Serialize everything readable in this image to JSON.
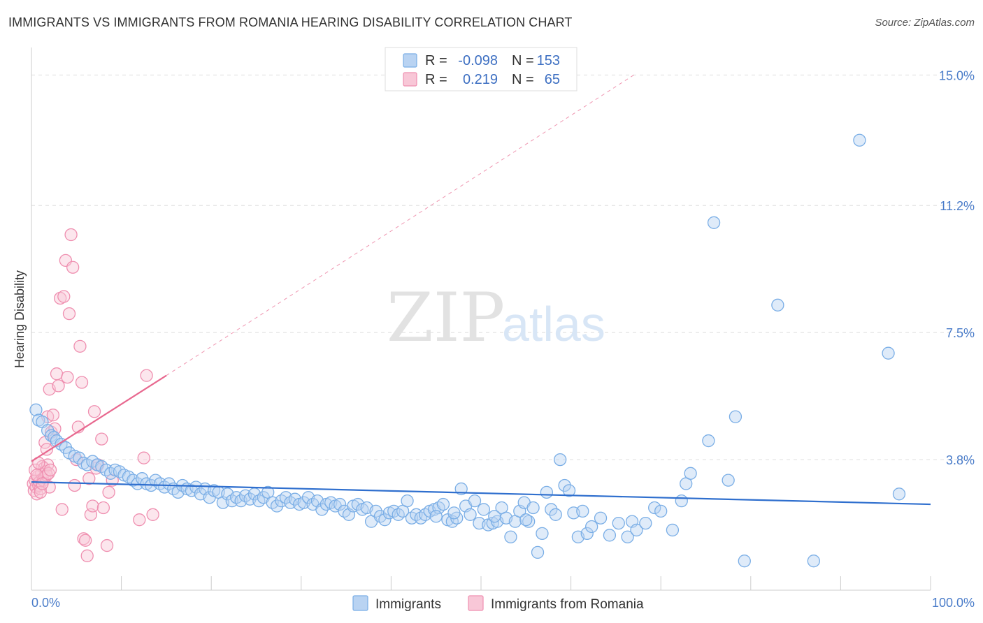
{
  "header": {
    "title": "IMMIGRANTS VS IMMIGRANTS FROM ROMANIA HEARING DISABILITY CORRELATION CHART",
    "source": "Source: ZipAtlas.com"
  },
  "watermark": {
    "zip": "ZIP",
    "atlas": "atlas"
  },
  "colors": {
    "blue": "#7aaee6",
    "blue_fill": "#b9d3f2",
    "blue_line": "#2f6fce",
    "pink": "#ef8fb0",
    "pink_fill": "#f8c7d7",
    "pink_line": "#e8688f",
    "grid": "#dddddd",
    "tick_text": "#4a7cc9"
  },
  "legend": {
    "rows": [
      {
        "r_label": "R =",
        "r_value": "-0.098",
        "n_label": "N =",
        "n_value": "153"
      },
      {
        "r_label": "R =",
        "r_value": "0.219",
        "n_label": "N =",
        "n_value": "65"
      }
    ]
  },
  "bottom_legend": [
    "Immigrants",
    "Immigrants from Romania"
  ],
  "chart_data": {
    "type": "scatter",
    "title": "IMMIGRANTS VS IMMIGRANTS FROM ROMANIA HEARING DISABILITY CORRELATION CHART",
    "xlabel": "",
    "ylabel": "Hearing Disability",
    "xlim": [
      0,
      100
    ],
    "ylim": [
      0,
      15.8
    ],
    "x_tick_labels": [
      "0.0%",
      "100.0%"
    ],
    "y_ticks": [
      3.8,
      7.5,
      11.2,
      15.0
    ],
    "y_tick_labels": [
      "3.8%",
      "7.5%",
      "11.2%",
      "15.0%"
    ],
    "grid": true,
    "legend_position": "top-center",
    "series": [
      {
        "name": "Immigrants",
        "r": -0.098,
        "n": 153,
        "trend": {
          "x": [
            0,
            100
          ],
          "y": [
            3.15,
            2.5
          ]
        },
        "points": [
          [
            0.5,
            5.25
          ],
          [
            0.8,
            4.95
          ],
          [
            1.2,
            4.9
          ],
          [
            1.8,
            4.65
          ],
          [
            2.2,
            4.5
          ],
          [
            2.5,
            4.45
          ],
          [
            2.8,
            4.35
          ],
          [
            3.3,
            4.25
          ],
          [
            3.8,
            4.15
          ],
          [
            4.2,
            4.0
          ],
          [
            4.8,
            3.9
          ],
          [
            5.3,
            3.85
          ],
          [
            5.8,
            3.7
          ],
          [
            6.2,
            3.65
          ],
          [
            6.8,
            3.75
          ],
          [
            7.3,
            3.65
          ],
          [
            7.8,
            3.6
          ],
          [
            8.3,
            3.5
          ],
          [
            8.8,
            3.4
          ],
          [
            9.3,
            3.5
          ],
          [
            9.8,
            3.45
          ],
          [
            10.3,
            3.35
          ],
          [
            10.8,
            3.3
          ],
          [
            11.3,
            3.2
          ],
          [
            11.8,
            3.1
          ],
          [
            12.3,
            3.25
          ],
          [
            12.8,
            3.1
          ],
          [
            13.3,
            3.05
          ],
          [
            13.8,
            3.2
          ],
          [
            14.3,
            3.1
          ],
          [
            14.8,
            3.0
          ],
          [
            15.3,
            3.1
          ],
          [
            15.8,
            2.95
          ],
          [
            16.3,
            2.85
          ],
          [
            16.8,
            3.05
          ],
          [
            17.3,
            2.95
          ],
          [
            17.8,
            2.9
          ],
          [
            18.3,
            3.0
          ],
          [
            18.8,
            2.8
          ],
          [
            19.3,
            2.95
          ],
          [
            19.8,
            2.7
          ],
          [
            20.3,
            2.9
          ],
          [
            20.8,
            2.85
          ],
          [
            21.3,
            2.55
          ],
          [
            21.8,
            2.8
          ],
          [
            22.3,
            2.6
          ],
          [
            22.8,
            2.7
          ],
          [
            23.3,
            2.6
          ],
          [
            23.8,
            2.75
          ],
          [
            24.3,
            2.65
          ],
          [
            24.8,
            2.8
          ],
          [
            25.3,
            2.6
          ],
          [
            25.8,
            2.7
          ],
          [
            26.3,
            2.85
          ],
          [
            26.8,
            2.55
          ],
          [
            27.3,
            2.45
          ],
          [
            27.8,
            2.6
          ],
          [
            28.3,
            2.7
          ],
          [
            28.8,
            2.55
          ],
          [
            29.3,
            2.65
          ],
          [
            29.8,
            2.5
          ],
          [
            30.3,
            2.55
          ],
          [
            30.8,
            2.7
          ],
          [
            31.3,
            2.5
          ],
          [
            31.8,
            2.6
          ],
          [
            32.3,
            2.35
          ],
          [
            32.8,
            2.5
          ],
          [
            33.3,
            2.55
          ],
          [
            33.8,
            2.45
          ],
          [
            34.3,
            2.5
          ],
          [
            34.8,
            2.3
          ],
          [
            35.3,
            2.2
          ],
          [
            35.8,
            2.45
          ],
          [
            36.3,
            2.5
          ],
          [
            36.8,
            2.35
          ],
          [
            37.3,
            2.4
          ],
          [
            37.8,
            2.0
          ],
          [
            38.3,
            2.3
          ],
          [
            38.8,
            2.15
          ],
          [
            39.3,
            2.05
          ],
          [
            39.8,
            2.25
          ],
          [
            40.3,
            2.3
          ],
          [
            40.8,
            2.2
          ],
          [
            41.3,
            2.3
          ],
          [
            41.8,
            2.6
          ],
          [
            42.3,
            2.1
          ],
          [
            42.8,
            2.2
          ],
          [
            43.3,
            2.1
          ],
          [
            43.8,
            2.2
          ],
          [
            44.3,
            2.3
          ],
          [
            44.8,
            2.35
          ],
          [
            45.3,
            2.4
          ],
          [
            45.8,
            2.5
          ],
          [
            46.3,
            2.05
          ],
          [
            46.8,
            2.0
          ],
          [
            47.3,
            2.1
          ],
          [
            47.8,
            2.95
          ],
          [
            48.3,
            2.45
          ],
          [
            48.8,
            2.2
          ],
          [
            49.3,
            2.6
          ],
          [
            49.8,
            1.95
          ],
          [
            50.3,
            2.35
          ],
          [
            50.8,
            1.9
          ],
          [
            51.3,
            1.95
          ],
          [
            51.8,
            2.0
          ],
          [
            52.3,
            2.4
          ],
          [
            52.8,
            2.1
          ],
          [
            53.3,
            1.55
          ],
          [
            53.8,
            2.0
          ],
          [
            54.3,
            2.3
          ],
          [
            54.8,
            2.55
          ],
          [
            55.3,
            2.0
          ],
          [
            55.8,
            2.4
          ],
          [
            56.3,
            1.1
          ],
          [
            56.8,
            1.65
          ],
          [
            57.3,
            2.85
          ],
          [
            57.8,
            2.35
          ],
          [
            58.3,
            2.2
          ],
          [
            58.8,
            3.8
          ],
          [
            59.3,
            3.05
          ],
          [
            59.8,
            2.9
          ],
          [
            60.3,
            2.25
          ],
          [
            60.8,
            1.55
          ],
          [
            61.3,
            2.3
          ],
          [
            61.8,
            1.65
          ],
          [
            62.3,
            1.85
          ],
          [
            63.3,
            2.1
          ],
          [
            64.3,
            1.6
          ],
          [
            65.3,
            1.95
          ],
          [
            66.3,
            1.55
          ],
          [
            66.8,
            2.0
          ],
          [
            67.3,
            1.75
          ],
          [
            68.3,
            1.95
          ],
          [
            69.3,
            2.4
          ],
          [
            70.0,
            2.3
          ],
          [
            71.3,
            1.75
          ],
          [
            72.3,
            2.6
          ],
          [
            72.8,
            3.1
          ],
          [
            73.3,
            3.4
          ],
          [
            75.3,
            4.35
          ],
          [
            75.9,
            10.7
          ],
          [
            77.5,
            3.2
          ],
          [
            78.3,
            5.05
          ],
          [
            79.3,
            0.85
          ],
          [
            83.0,
            8.3
          ],
          [
            87.0,
            0.85
          ],
          [
            92.1,
            13.1
          ],
          [
            95.3,
            6.9
          ],
          [
            96.5,
            2.8
          ],
          [
            45.0,
            2.15
          ],
          [
            47.0,
            2.25
          ],
          [
            51.5,
            2.15
          ],
          [
            55.0,
            2.05
          ]
        ]
      },
      {
        "name": "Immigrants from Romania",
        "r": 0.219,
        "n": 65,
        "trend": {
          "x": [
            0,
            15
          ],
          "y": [
            3.75,
            6.25
          ],
          "dashed_extension": {
            "x": [
              15,
              67
            ],
            "y": [
              6.25,
              15.0
            ]
          }
        },
        "points": [
          [
            0.2,
            3.1
          ],
          [
            0.3,
            2.9
          ],
          [
            0.4,
            3.2
          ],
          [
            0.5,
            3.0
          ],
          [
            0.6,
            2.8
          ],
          [
            0.7,
            3.3
          ],
          [
            0.8,
            3.05
          ],
          [
            0.9,
            3.15
          ],
          [
            1.0,
            2.95
          ],
          [
            1.1,
            3.4
          ],
          [
            1.2,
            3.6
          ],
          [
            1.3,
            3.2
          ],
          [
            1.4,
            3.55
          ],
          [
            1.5,
            3.3
          ],
          [
            1.6,
            3.45
          ],
          [
            1.7,
            3.35
          ],
          [
            1.8,
            3.65
          ],
          [
            1.9,
            3.4
          ],
          [
            2.0,
            3.0
          ],
          [
            2.1,
            3.5
          ],
          [
            0.4,
            3.5
          ],
          [
            0.6,
            3.35
          ],
          [
            0.8,
            3.7
          ],
          [
            1.0,
            2.85
          ],
          [
            1.2,
            3.1
          ],
          [
            1.5,
            4.3
          ],
          [
            1.7,
            4.1
          ],
          [
            1.8,
            5.05
          ],
          [
            2.0,
            5.85
          ],
          [
            2.2,
            4.6
          ],
          [
            2.4,
            5.1
          ],
          [
            2.6,
            4.7
          ],
          [
            2.8,
            6.3
          ],
          [
            3.0,
            5.95
          ],
          [
            3.2,
            8.5
          ],
          [
            3.4,
            2.35
          ],
          [
            3.6,
            8.55
          ],
          [
            3.8,
            9.6
          ],
          [
            4.0,
            6.2
          ],
          [
            4.2,
            8.05
          ],
          [
            4.4,
            10.35
          ],
          [
            4.6,
            9.4
          ],
          [
            4.8,
            3.05
          ],
          [
            5.0,
            3.8
          ],
          [
            5.2,
            4.75
          ],
          [
            5.4,
            7.1
          ],
          [
            5.6,
            6.05
          ],
          [
            5.8,
            1.5
          ],
          [
            6.0,
            1.45
          ],
          [
            6.2,
            1.0
          ],
          [
            6.4,
            3.25
          ],
          [
            6.6,
            2.2
          ],
          [
            6.8,
            2.45
          ],
          [
            7.0,
            5.2
          ],
          [
            7.2,
            3.55
          ],
          [
            7.4,
            3.65
          ],
          [
            7.8,
            4.4
          ],
          [
            8.0,
            2.4
          ],
          [
            8.4,
            1.3
          ],
          [
            8.6,
            2.85
          ],
          [
            9.0,
            3.2
          ],
          [
            12.0,
            2.05
          ],
          [
            12.5,
            3.85
          ],
          [
            12.8,
            6.25
          ],
          [
            13.5,
            2.2
          ]
        ]
      }
    ]
  }
}
